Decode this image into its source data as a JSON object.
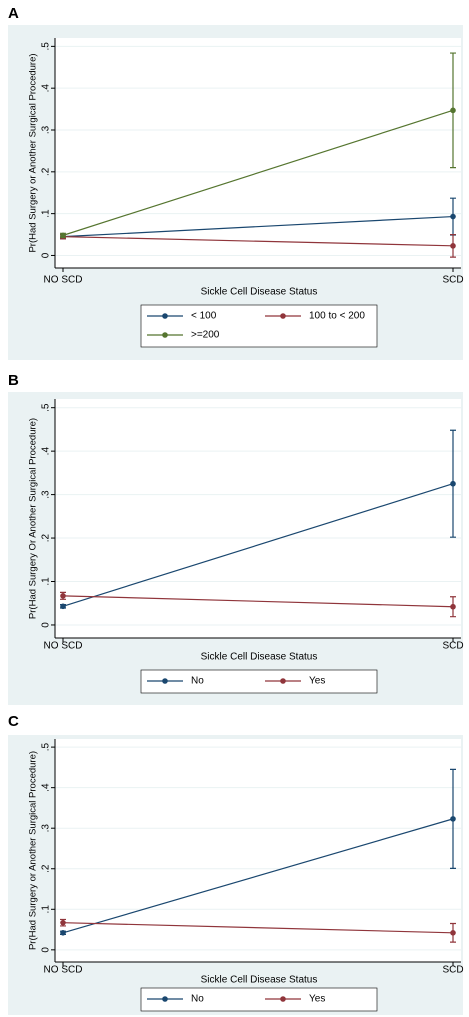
{
  "chart_data": [
    {
      "type": "line",
      "panel_label": "A",
      "ylabel": "Pr(Had Surgery or Another Surgical Procedure)",
      "xlabel": "Sickle Cell Disease Status",
      "categories": [
        "NO SCD",
        "SCD"
      ],
      "series": [
        {
          "name": "< 100",
          "color": "#1a476f",
          "values": [
            0.045,
            0.093
          ],
          "errors": [
            0.005,
            0.044
          ]
        },
        {
          "name": "100 to < 200",
          "color": "#90353b",
          "values": [
            0.045,
            0.023
          ],
          "errors": [
            0.005,
            0.027
          ]
        },
        {
          "name": ">=200",
          "color": "#55752f",
          "values": [
            0.048,
            0.347
          ],
          "errors": [
            0.005,
            0.137
          ]
        }
      ],
      "ylim": [
        -0.03,
        0.52
      ],
      "yticks": [
        0,
        {
          "value": 0.1,
          "label": ".1"
        },
        {
          "value": 0.2,
          "label": ".2"
        },
        {
          "value": 0.3,
          "label": ".3"
        },
        {
          "value": 0.4,
          "label": ".4"
        },
        {
          "value": 0.5,
          "label": ".5"
        }
      ],
      "grid": true
    },
    {
      "type": "line",
      "panel_label": "B",
      "ylabel": "Pr(Had Surgery Or Another Surgical Procedure)",
      "xlabel": "Sickle Cell Disease Status",
      "categories": [
        "NO SCD",
        "SCD"
      ],
      "series": [
        {
          "name": "No",
          "color": "#1a476f",
          "values": [
            0.043,
            0.325
          ],
          "errors": [
            0.004,
            0.123
          ]
        },
        {
          "name": "Yes",
          "color": "#90353b",
          "values": [
            0.067,
            0.042
          ],
          "errors": [
            0.008,
            0.023
          ]
        }
      ],
      "ylim": [
        -0.03,
        0.52
      ],
      "yticks": [
        0,
        {
          "value": 0.1,
          "label": ".1"
        },
        {
          "value": 0.2,
          "label": ".2"
        },
        {
          "value": 0.3,
          "label": ".3"
        },
        {
          "value": 0.4,
          "label": ".4"
        },
        {
          "value": 0.5,
          "label": ".5"
        }
      ],
      "grid": true
    },
    {
      "type": "line",
      "panel_label": "C",
      "ylabel": "Pr(Had Surgery or Another Surgical Procedure)",
      "xlabel": "Sickle Cell Disease Status",
      "categories": [
        "NO SCD",
        "SCD"
      ],
      "series": [
        {
          "name": "No",
          "color": "#1a476f",
          "values": [
            0.042,
            0.323
          ],
          "errors": [
            0.004,
            0.122
          ]
        },
        {
          "name": "Yes",
          "color": "#90353b",
          "values": [
            0.067,
            0.042
          ],
          "errors": [
            0.008,
            0.023
          ]
        }
      ],
      "ylim": [
        -0.03,
        0.52
      ],
      "yticks": [
        0,
        {
          "value": 0.1,
          "label": ".1"
        },
        {
          "value": 0.2,
          "label": ".2"
        },
        {
          "value": 0.3,
          "label": ".3"
        },
        {
          "value": 0.4,
          "label": ".4"
        },
        {
          "value": 0.5,
          "label": ".5"
        }
      ],
      "grid": true
    }
  ]
}
